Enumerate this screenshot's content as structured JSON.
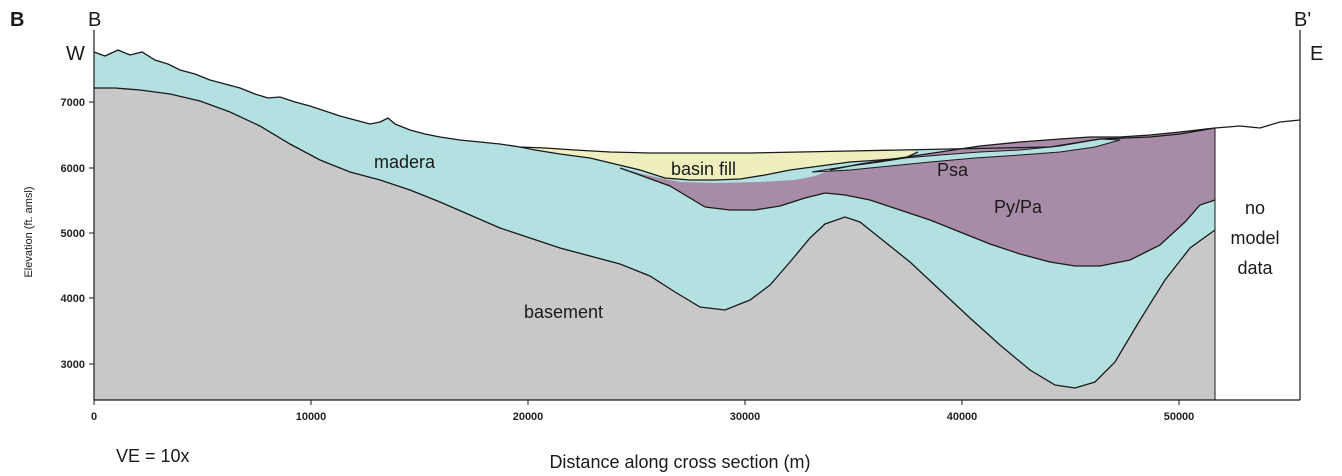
{
  "panel_label": "B",
  "section_start": "B",
  "section_end": "B'",
  "west_label": "W",
  "east_label": "E",
  "ylabel": "Elevation (ft. amsl)",
  "xlabel": "Distance along cross section (m)",
  "ve_note": "VE = 10x",
  "x_ticks": [
    "0",
    "10000",
    "20000",
    "30000",
    "40000",
    "50000"
  ],
  "y_ticks": [
    "7000",
    "6000",
    "5000",
    "4000",
    "3000"
  ],
  "units": {
    "madera": "madera",
    "basin_fill": "basin fill",
    "psa": "Psa",
    "py_pa": "Py/Pa",
    "basement": "basement"
  },
  "no_data_lines": [
    "no",
    "model",
    "data"
  ],
  "colors": {
    "madera": "#b3e0e0",
    "basin_fill": "#eeeebf",
    "py_pa": "#a88ba6",
    "basement": "#c8c8c8",
    "outline": "#1a1a1a"
  }
}
